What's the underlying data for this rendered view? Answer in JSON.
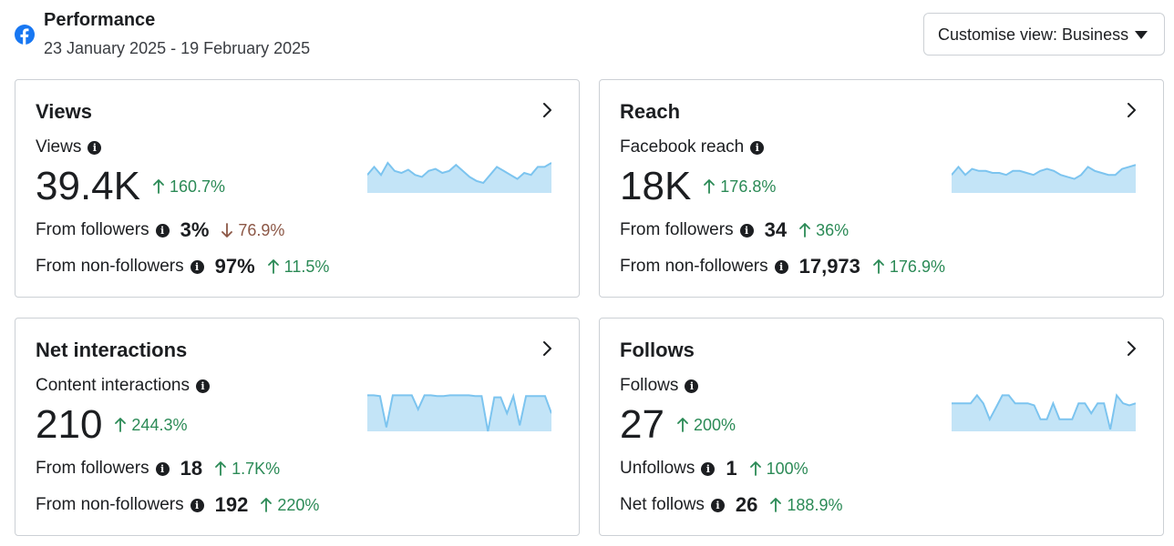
{
  "header": {
    "title": "Performance",
    "date_range": "23 January 2025 - 19 February 2025",
    "customise_label": "Customise view: Business",
    "icon": "facebook-icon",
    "brand_color": "#1877f2"
  },
  "cards": {
    "views": {
      "title": "Views",
      "metric_label": "Views",
      "value": "39.4K",
      "change": "160.7%",
      "change_dir": "up",
      "row1_label": "From followers",
      "row1_value": "3%",
      "row1_change": "76.9%",
      "row1_dir": "down",
      "row2_label": "From non-followers",
      "row2_value": "97%",
      "row2_change": "11.5%",
      "row2_dir": "up"
    },
    "reach": {
      "title": "Reach",
      "metric_label": "Facebook reach",
      "value": "18K",
      "change": "176.8%",
      "change_dir": "up",
      "row1_label": "From followers",
      "row1_value": "34",
      "row1_change": "36%",
      "row1_dir": "up",
      "row2_label": "From non-followers",
      "row2_value": "17,973",
      "row2_change": "176.9%",
      "row2_dir": "up"
    },
    "interactions": {
      "title": "Net interactions",
      "metric_label": "Content interactions",
      "value": "210",
      "change": "244.3%",
      "change_dir": "up",
      "row1_label": "From followers",
      "row1_value": "18",
      "row1_change": "1.7K%",
      "row1_dir": "up",
      "row2_label": "From non-followers",
      "row2_value": "192",
      "row2_change": "220%",
      "row2_dir": "up"
    },
    "follows": {
      "title": "Follows",
      "metric_label": "Follows",
      "value": "27",
      "change": "200%",
      "change_dir": "up",
      "row1_label": "Unfollows",
      "row1_value": "1",
      "row1_change": "100%",
      "row1_dir": "up",
      "row2_label": "Net follows",
      "row2_value": "26",
      "row2_change": "188.9%",
      "row2_dir": "up"
    }
  },
  "sparklines": {
    "color_line": "#7cc4ef",
    "color_fill": "#c3e4f7",
    "views": [
      0.55,
      0.35,
      0.55,
      0.25,
      0.45,
      0.5,
      0.42,
      0.55,
      0.6,
      0.45,
      0.4,
      0.5,
      0.45,
      0.3,
      0.45,
      0.6,
      0.7,
      0.75,
      0.55,
      0.35,
      0.45,
      0.55,
      0.65,
      0.5,
      0.55,
      0.35,
      0.35,
      0.25
    ],
    "reach": [
      0.55,
      0.35,
      0.55,
      0.4,
      0.45,
      0.45,
      0.5,
      0.5,
      0.55,
      0.45,
      0.45,
      0.5,
      0.55,
      0.45,
      0.4,
      0.45,
      0.55,
      0.6,
      0.65,
      0.55,
      0.35,
      0.45,
      0.5,
      0.55,
      0.55,
      0.4,
      0.35,
      0.3
    ],
    "interactions": [
      0.1,
      0.1,
      0.12,
      0.9,
      0.1,
      0.1,
      0.1,
      0.1,
      0.45,
      0.1,
      0.1,
      0.12,
      0.12,
      0.1,
      0.1,
      0.1,
      0.1,
      0.12,
      0.12,
      1.0,
      0.15,
      0.15,
      0.55,
      0.12,
      0.85,
      0.12,
      0.12,
      0.12,
      0.12,
      0.55
    ],
    "follows": [
      0.3,
      0.3,
      0.3,
      0.3,
      0.1,
      0.3,
      0.7,
      0.4,
      0.1,
      0.1,
      0.3,
      0.3,
      0.3,
      0.35,
      0.7,
      0.7,
      0.3,
      0.7,
      0.7,
      0.7,
      0.3,
      0.3,
      0.55,
      0.3,
      0.3,
      0.95,
      0.1,
      0.3,
      0.35,
      0.3
    ]
  }
}
